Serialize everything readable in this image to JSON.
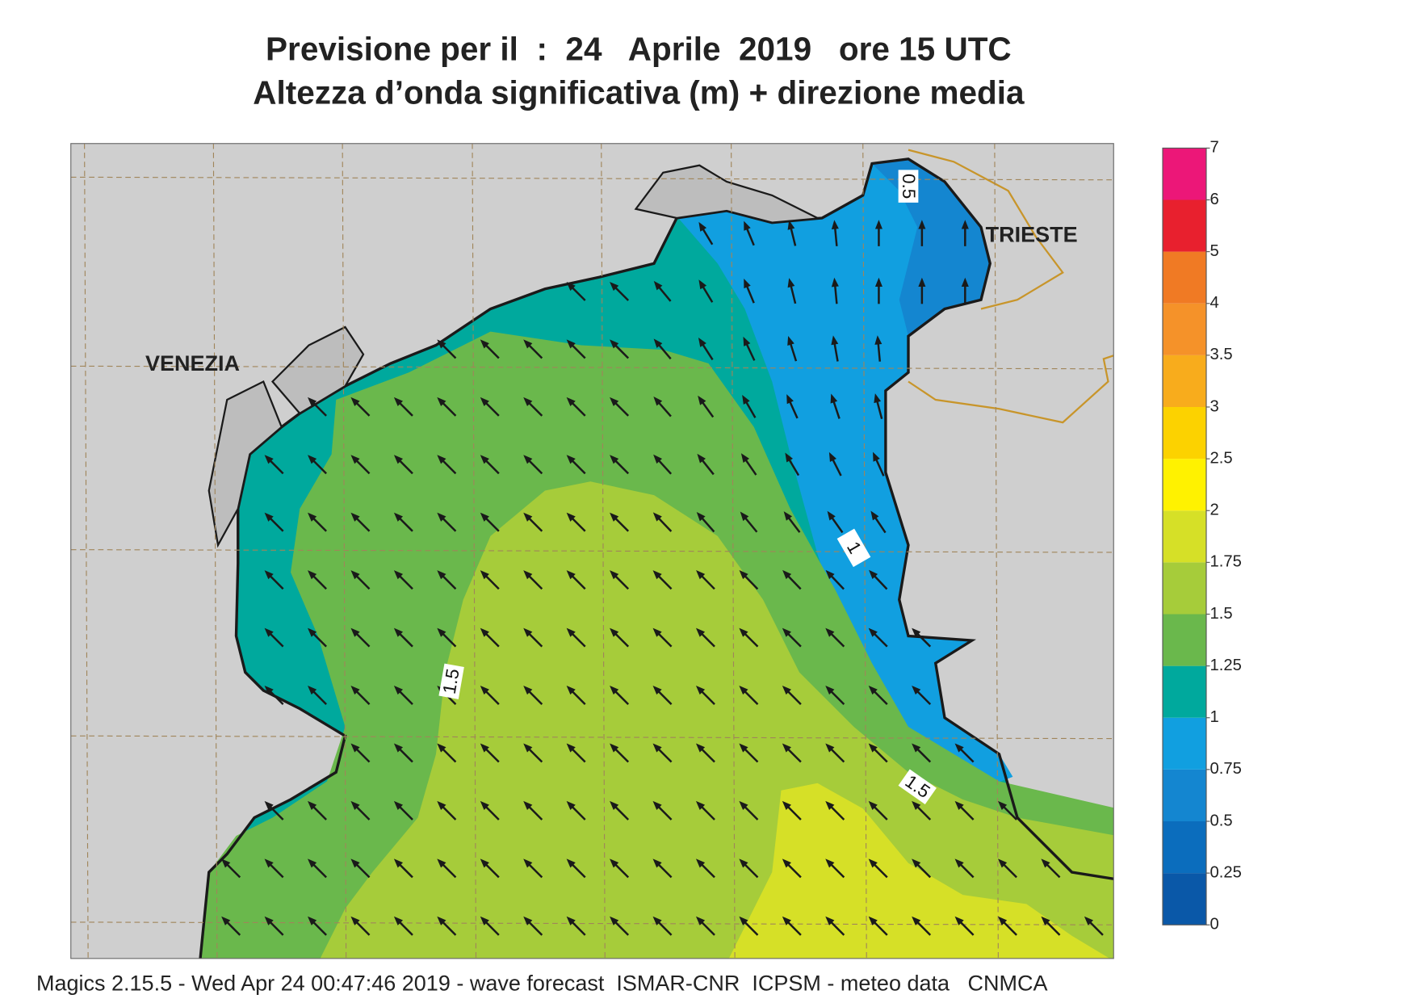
{
  "header": {
    "title": "Previsione per il  :  24   Aprile  2019   ore 15 UTC",
    "subtitle": "Altezza d’onda significativa (m) + direzione media"
  },
  "map": {
    "places": [
      "VENEZIA",
      "TRIESTE"
    ],
    "contour_labels": [
      "0.5",
      "1",
      "1.5",
      "1.5"
    ]
  },
  "colorbar": {
    "ticks": [
      0,
      0.25,
      0.5,
      0.75,
      1,
      1.25,
      1.5,
      1.75,
      2,
      2.5,
      3,
      3.5,
      4,
      5,
      6,
      7
    ],
    "colors": [
      "#0a58a8",
      "#0b6dbd",
      "#1486d0",
      "#119fe0",
      "#00a99d",
      "#6ab84c",
      "#a6cc3a",
      "#d6e027",
      "#fff200",
      "#fcd200",
      "#f8ac1c",
      "#f59229",
      "#f07a24",
      "#e8202e",
      "#ec1778"
    ]
  },
  "footer": "Magics 2.15.5 - Wed Apr 24 00:47:46 2019 - wave forecast  ISMAR-CNR  ICPSM - meteo data   CNMCA"
}
